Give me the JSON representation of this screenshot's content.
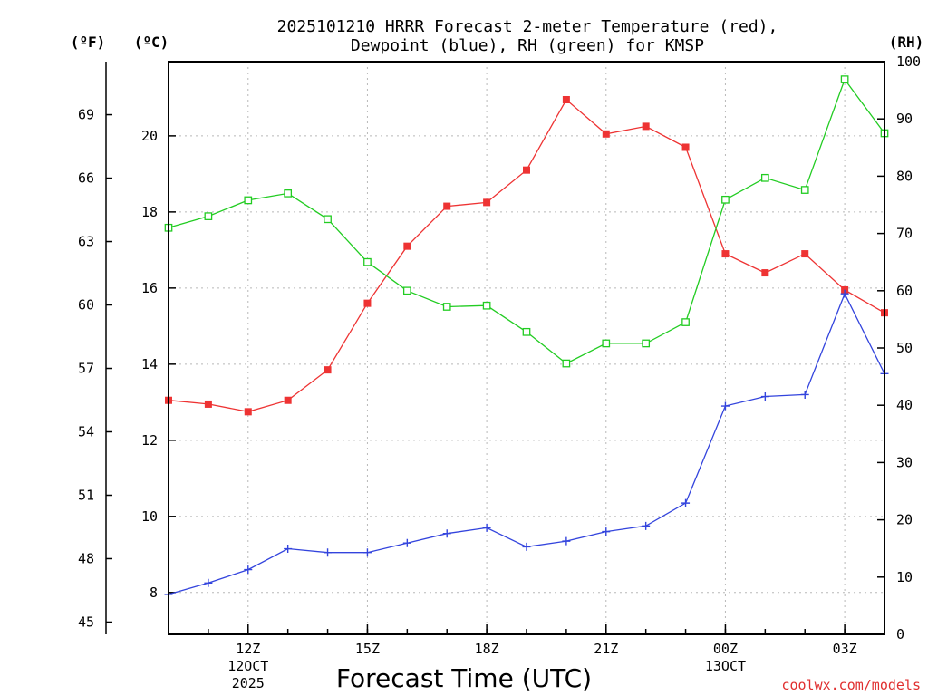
{
  "chart_data": {
    "type": "line",
    "title": [
      "2025101210 HRRR Forecast 2-meter Temperature (red),",
      "Dewpoint (blue), RH (green) for KMSP"
    ],
    "xlabel": "Forecast Time (UTC)",
    "credit": "coolwx.com/models",
    "x_hours": [
      10,
      11,
      12,
      13,
      14,
      15,
      16,
      17,
      18,
      19,
      20,
      21,
      22,
      23,
      24,
      25,
      26,
      27,
      28
    ],
    "xlim": [
      10,
      28
    ],
    "x_tick_labels": [
      {
        "x": 12,
        "lines": [
          "12Z",
          "12OCT",
          "2025"
        ]
      },
      {
        "x": 15,
        "lines": [
          "15Z"
        ]
      },
      {
        "x": 18,
        "lines": [
          "18Z"
        ]
      },
      {
        "x": 21,
        "lines": [
          "21Z"
        ]
      },
      {
        "x": 24,
        "lines": [
          "00Z",
          "13OCT"
        ]
      },
      {
        "x": 27,
        "lines": [
          "03Z"
        ]
      }
    ],
    "y_left_c": {
      "unit": "(ºC)",
      "lim": [
        6.9,
        21.95
      ],
      "ticks": [
        8,
        10,
        12,
        14,
        16,
        18,
        20
      ]
    },
    "y_left_f": {
      "unit": "(ºF)",
      "lim": [
        44.42,
        71.51
      ],
      "ticks": [
        45,
        48,
        51,
        54,
        57,
        60,
        63,
        66,
        69
      ]
    },
    "y_right_rh": {
      "unit": "(RH)",
      "lim": [
        0,
        100
      ],
      "ticks": [
        0,
        10,
        20,
        30,
        40,
        50,
        60,
        70,
        80,
        90,
        100
      ]
    },
    "series": [
      {
        "name": "Temperature",
        "axis": "C",
        "color": "#ee3333",
        "marker": "filled-square",
        "values": [
          13.05,
          12.95,
          12.75,
          13.05,
          13.85,
          15.6,
          17.1,
          18.15,
          18.25,
          19.1,
          20.95,
          20.05,
          20.25,
          19.7,
          16.9,
          16.4,
          16.9,
          15.95,
          15.35
        ]
      },
      {
        "name": "Dewpoint",
        "axis": "C",
        "color": "#3344dd",
        "marker": "plus",
        "values": [
          7.95,
          8.25,
          8.6,
          9.15,
          9.05,
          9.05,
          9.3,
          9.55,
          9.7,
          9.2,
          9.35,
          9.6,
          9.75,
          10.35,
          12.9,
          13.15,
          13.2,
          15.85,
          13.75
        ]
      },
      {
        "name": "RH",
        "axis": "RH",
        "color": "#22cc22",
        "marker": "open-square",
        "values": [
          71,
          73,
          75.8,
          77,
          72.5,
          65,
          60,
          57.2,
          57.4,
          52.8,
          47.3,
          50.8,
          50.8,
          54.5,
          75.9,
          79.7,
          77.6,
          96.9,
          87.5
        ]
      }
    ]
  }
}
